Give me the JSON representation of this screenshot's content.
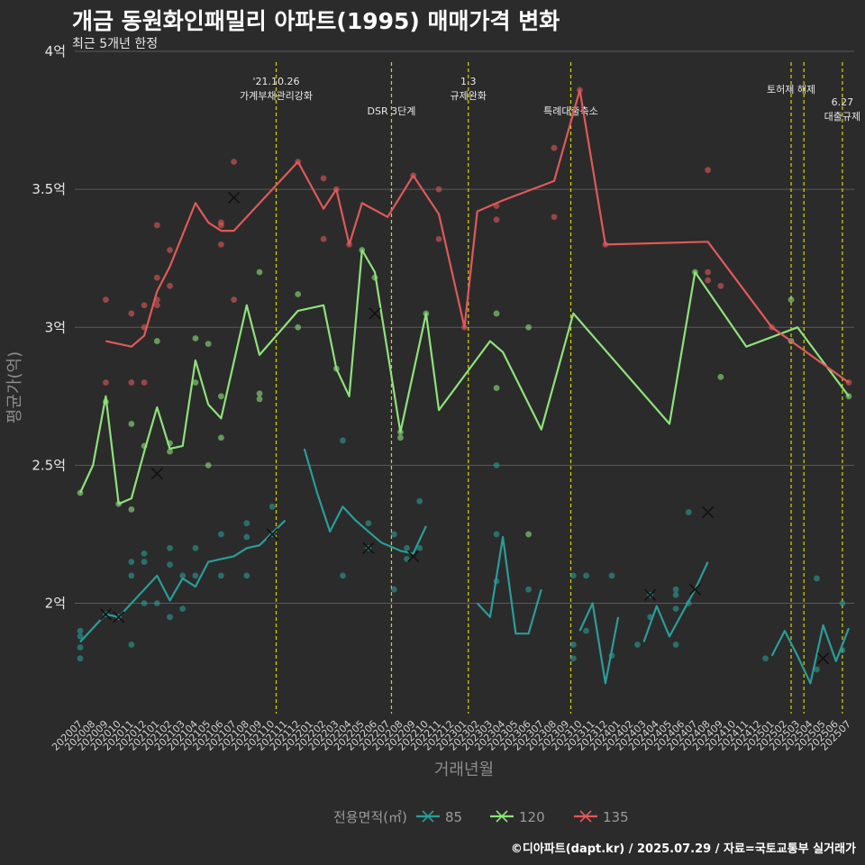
{
  "header": {
    "title": "개금 동원화인패밀리 아파트(1995) 매매가격 변화",
    "subtitle": "최근 5개년 한정"
  },
  "caption": "©디아파트(dapt.kr) / 2025.07.29 / 자료=국토교통부 실거래가",
  "colors": {
    "s85": "#2a9d98",
    "s120": "#8ee27a",
    "s135": "#e0595a",
    "event_line": "#d6d600"
  },
  "chart_data": {
    "type": "line",
    "xlabel": "거래년월",
    "ylabel": "평균가(억)",
    "ylim": [
      1.6,
      4.0
    ],
    "y_ticks": [
      2,
      2.5,
      3,
      3.5,
      4
    ],
    "y_tick_labels": [
      "2억",
      "2.5억",
      "3억",
      "3.5억",
      "4억"
    ],
    "x_categories": [
      "202007",
      "202008",
      "202009",
      "202010",
      "202011",
      "202012",
      "202101",
      "202102",
      "202103",
      "202104",
      "202105",
      "202106",
      "202107",
      "202108",
      "202109",
      "202110",
      "202111",
      "202112",
      "202201",
      "202202",
      "202203",
      "202204",
      "202205",
      "202206",
      "202207",
      "202208",
      "202209",
      "202210",
      "202211",
      "202212",
      "202301",
      "202302",
      "202303",
      "202304",
      "202305",
      "202306",
      "202307",
      "202308",
      "202309",
      "202310",
      "202311",
      "202312",
      "202401",
      "202402",
      "202403",
      "202404",
      "202405",
      "202406",
      "202407",
      "202408",
      "202409",
      "202410",
      "202411",
      "202412",
      "202501",
      "202502",
      "202503",
      "202504",
      "202505",
      "202506",
      "202507"
    ],
    "legend": {
      "title": "전용면적(㎡)",
      "position": "bottom",
      "items": [
        "85",
        "120",
        "135"
      ]
    },
    "events": [
      {
        "x": 15.3,
        "lines": [
          "'21.10.26",
          "가계부채관리강화"
        ],
        "level": 1
      },
      {
        "x": 24.3,
        "lines": [
          "DSR 3단계"
        ],
        "level": 2
      },
      {
        "x": 30.3,
        "lines": [
          "1.3",
          "규제완화"
        ],
        "level": 1
      },
      {
        "x": 38.3,
        "lines": [
          "특례대출축소"
        ],
        "level": 2
      },
      {
        "x": 55.5,
        "lines": [
          "토허제 해제"
        ],
        "level": 3
      },
      {
        "x": 56.5,
        "lines": [],
        "level": 3
      },
      {
        "x": 59.5,
        "lines": [
          "6.27",
          "대출규제"
        ],
        "level": 4
      }
    ],
    "series": [
      {
        "name": "85",
        "color_key": "s85",
        "segments": [
          [
            [
              0,
              1.86
            ],
            [
              2,
              1.96
            ],
            [
              3,
              1.95
            ],
            [
              5,
              2.05
            ],
            [
              6,
              2.1
            ],
            [
              7,
              2.01
            ],
            [
              8,
              2.09
            ],
            [
              9,
              2.06
            ],
            [
              10,
              2.15
            ],
            [
              12,
              2.17
            ],
            [
              13,
              2.2
            ],
            [
              14,
              2.21
            ],
            [
              16,
              2.3
            ]
          ],
          [
            [
              17.5,
              2.56
            ],
            [
              18.5,
              2.4
            ],
            [
              19.5,
              2.26
            ],
            [
              20.5,
              2.35
            ],
            [
              21.5,
              2.3
            ],
            [
              22.5,
              2.26
            ],
            [
              23.5,
              2.22
            ],
            [
              25,
              2.19
            ],
            [
              26,
              2.18
            ],
            [
              27,
              2.28
            ]
          ],
          [
            [
              31,
              2.0
            ],
            [
              32,
              1.95
            ],
            [
              33,
              2.24
            ],
            [
              34,
              1.89
            ],
            [
              35,
              1.89
            ],
            [
              36,
              2.05
            ]
          ],
          [
            [
              39,
              1.9
            ],
            [
              40,
              2.0
            ],
            [
              41,
              1.71
            ],
            [
              42,
              1.95
            ]
          ],
          [
            [
              44,
              1.86
            ],
            [
              45,
              1.99
            ],
            [
              46,
              1.88
            ],
            [
              48,
              2.05
            ],
            [
              49,
              2.15
            ]
          ],
          [
            [
              54,
              1.81
            ],
            [
              55,
              1.9
            ],
            [
              56,
              1.81
            ],
            [
              57,
              1.71
            ],
            [
              58,
              1.92
            ],
            [
              59,
              1.79
            ],
            [
              60,
              1.91
            ]
          ]
        ],
        "points": [
          [
            0,
            1.8
          ],
          [
            0,
            1.84
          ],
          [
            0,
            1.88
          ],
          [
            0,
            1.9
          ],
          [
            2,
            1.96
          ],
          [
            3,
            1.95
          ],
          [
            4,
            1.85
          ],
          [
            4,
            2.1
          ],
          [
            4,
            2.15
          ],
          [
            5,
            2.15
          ],
          [
            5,
            2.18
          ],
          [
            5,
            2.0
          ],
          [
            6,
            2.0
          ],
          [
            7,
            1.95
          ],
          [
            7,
            2.14
          ],
          [
            7,
            2.2
          ],
          [
            8,
            1.98
          ],
          [
            8,
            2.1
          ],
          [
            9,
            2.1
          ],
          [
            9,
            2.2
          ],
          [
            11,
            2.1
          ],
          [
            11,
            2.25
          ],
          [
            13,
            2.1
          ],
          [
            13,
            2.24
          ],
          [
            13,
            2.29
          ],
          [
            15,
            2.35
          ],
          [
            15,
            2.25
          ],
          [
            20.5,
            2.59
          ],
          [
            20.5,
            2.1
          ],
          [
            22.5,
            2.29
          ],
          [
            22.5,
            2.2
          ],
          [
            24.5,
            2.25
          ],
          [
            24.5,
            2.05
          ],
          [
            25.5,
            2.16
          ],
          [
            25.5,
            2.2
          ],
          [
            26.5,
            2.37
          ],
          [
            26.5,
            2.2
          ],
          [
            32.5,
            2.5
          ],
          [
            32.5,
            2.25
          ],
          [
            32.5,
            2.08
          ],
          [
            35,
            2.05
          ],
          [
            38.5,
            1.8
          ],
          [
            38.5,
            1.85
          ],
          [
            38.5,
            2.1
          ],
          [
            39.5,
            2.1
          ],
          [
            39.5,
            1.9
          ],
          [
            41.5,
            1.81
          ],
          [
            41.5,
            2.1
          ],
          [
            43.5,
            1.85
          ],
          [
            44.5,
            1.95
          ],
          [
            44.5,
            2.03
          ],
          [
            46.5,
            1.98
          ],
          [
            46.5,
            2.05
          ],
          [
            46.5,
            1.85
          ],
          [
            46.5,
            2.03
          ],
          [
            47.5,
            2.0
          ],
          [
            47.5,
            2.33
          ],
          [
            53.5,
            1.8
          ],
          [
            57.5,
            1.76
          ],
          [
            57.5,
            2.09
          ],
          [
            59.5,
            1.83
          ],
          [
            59.5,
            2.0
          ]
        ],
        "mark_x": [
          [
            2,
            1.96
          ],
          [
            3,
            1.95
          ],
          [
            15,
            2.25
          ],
          [
            22.5,
            2.2
          ],
          [
            26,
            2.17
          ],
          [
            44.5,
            2.03
          ],
          [
            48,
            2.05
          ],
          [
            49,
            2.33
          ],
          [
            58,
            1.8
          ]
        ]
      },
      {
        "name": "120",
        "color_key": "s120",
        "segments": [
          [
            [
              0,
              2.4
            ],
            [
              1,
              2.5
            ],
            [
              2,
              2.75
            ],
            [
              3,
              2.36
            ],
            [
              4,
              2.38
            ],
            [
              5,
              2.55
            ],
            [
              6,
              2.71
            ],
            [
              7,
              2.56
            ],
            [
              8,
              2.57
            ],
            [
              9,
              2.88
            ],
            [
              10,
              2.72
            ],
            [
              11,
              2.67
            ],
            [
              13,
              3.08
            ],
            [
              14,
              2.9
            ],
            [
              17,
              3.06
            ],
            [
              19,
              3.08
            ],
            [
              20,
              2.85
            ],
            [
              21,
              2.75
            ],
            [
              22,
              3.28
            ],
            [
              23,
              3.2
            ],
            [
              25,
              2.62
            ],
            [
              27,
              3.05
            ],
            [
              28,
              2.7
            ],
            [
              32,
              2.95
            ],
            [
              33,
              2.91
            ],
            [
              36,
              2.63
            ],
            [
              38.5,
              3.05
            ],
            [
              46,
              2.65
            ],
            [
              48,
              3.2
            ],
            [
              52,
              2.93
            ],
            [
              56,
              3.0
            ],
            [
              60,
              2.75
            ]
          ]
        ],
        "points": [
          [
            0,
            2.4
          ],
          [
            2,
            2.73
          ],
          [
            3,
            2.36
          ],
          [
            4,
            2.34
          ],
          [
            4,
            2.65
          ],
          [
            5,
            2.57
          ],
          [
            6,
            2.95
          ],
          [
            7,
            2.55
          ],
          [
            7,
            2.58
          ],
          [
            9,
            2.96
          ],
          [
            9,
            2.8
          ],
          [
            10,
            2.94
          ],
          [
            10,
            2.5
          ],
          [
            11,
            2.75
          ],
          [
            11,
            2.6
          ],
          [
            14,
            3.2
          ],
          [
            14,
            2.76
          ],
          [
            14,
            2.74
          ],
          [
            17,
            3.12
          ],
          [
            17,
            3.0
          ],
          [
            20,
            2.85
          ],
          [
            22,
            3.28
          ],
          [
            23,
            3.18
          ],
          [
            25,
            2.62
          ],
          [
            25,
            2.6
          ],
          [
            27,
            3.05
          ],
          [
            32.5,
            3.05
          ],
          [
            32.5,
            2.78
          ],
          [
            35,
            3.0
          ],
          [
            35,
            2.25
          ],
          [
            48,
            3.2
          ],
          [
            50,
            2.82
          ],
          [
            55.5,
            3.1
          ],
          [
            55.5,
            2.95
          ],
          [
            60,
            2.75
          ]
        ],
        "mark_x": [
          [
            6,
            2.47
          ],
          [
            23,
            3.05
          ]
        ]
      },
      {
        "name": "135",
        "color_key": "s135",
        "segments": [
          [
            [
              2,
              2.95
            ],
            [
              4,
              2.93
            ],
            [
              5,
              2.97
            ],
            [
              6,
              3.13
            ],
            [
              7,
              3.22
            ],
            [
              9,
              3.45
            ],
            [
              10,
              3.38
            ],
            [
              11,
              3.35
            ],
            [
              12,
              3.35
            ],
            [
              17,
              3.6
            ],
            [
              19,
              3.43
            ],
            [
              20,
              3.5
            ],
            [
              21,
              3.3
            ],
            [
              22,
              3.45
            ],
            [
              24,
              3.4
            ],
            [
              26,
              3.55
            ],
            [
              28,
              3.41
            ],
            [
              30,
              3.0
            ],
            [
              31,
              3.42
            ],
            [
              33,
              3.46
            ],
            [
              37,
              3.53
            ],
            [
              39,
              3.86
            ],
            [
              41,
              3.3
            ],
            [
              49,
              3.31
            ],
            [
              54,
              3.0
            ],
            [
              60,
              2.8
            ]
          ]
        ],
        "points": [
          [
            2,
            3.1
          ],
          [
            2,
            2.8
          ],
          [
            4,
            3.05
          ],
          [
            4,
            2.8
          ],
          [
            5,
            3.08
          ],
          [
            5,
            3.0
          ],
          [
            5,
            2.8
          ],
          [
            6,
            3.37
          ],
          [
            6,
            3.18
          ],
          [
            6,
            3.1
          ],
          [
            6,
            3.08
          ],
          [
            7,
            3.28
          ],
          [
            7,
            3.15
          ],
          [
            11,
            3.38
          ],
          [
            11,
            3.37
          ],
          [
            11,
            3.3
          ],
          [
            12,
            3.6
          ],
          [
            12,
            3.1
          ],
          [
            17,
            3.6
          ],
          [
            19,
            3.54
          ],
          [
            19,
            3.32
          ],
          [
            20,
            3.5
          ],
          [
            21,
            3.3
          ],
          [
            26,
            3.55
          ],
          [
            28,
            3.5
          ],
          [
            28,
            3.32
          ],
          [
            30,
            3.0
          ],
          [
            32.5,
            3.44
          ],
          [
            32.5,
            3.39
          ],
          [
            37,
            3.65
          ],
          [
            37,
            3.4
          ],
          [
            39,
            3.86
          ],
          [
            41,
            3.3
          ],
          [
            49,
            3.57
          ],
          [
            49,
            3.2
          ],
          [
            49,
            3.17
          ],
          [
            50,
            3.15
          ],
          [
            54,
            3.0
          ],
          [
            60,
            2.8
          ]
        ],
        "mark_x": [
          [
            12,
            3.47
          ]
        ]
      }
    ]
  }
}
